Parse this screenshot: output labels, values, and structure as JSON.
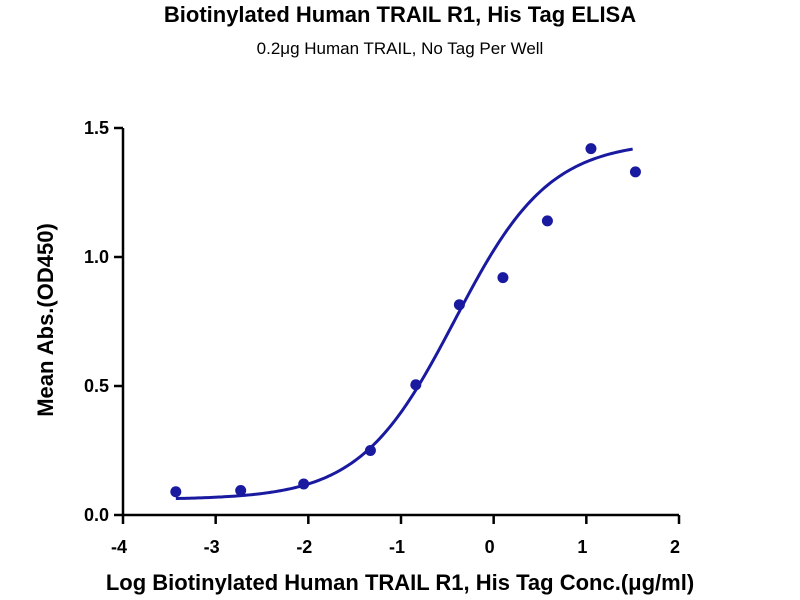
{
  "chart_data": {
    "type": "scatter",
    "title": "Biotinylated Human TRAIL R1, His Tag ELISA",
    "subtitle": "0.2μg Human TRAIL, No Tag Per Well",
    "xlabel": "Log Biotinylated Human TRAIL R1, His Tag Conc.(μg/ml)",
    "ylabel": "Mean Abs.(OD450)",
    "xlim": [
      -4,
      2
    ],
    "ylim": [
      0,
      1.5
    ],
    "xticks": [
      "-4",
      "-3",
      "-2",
      "-1",
      "0",
      "1",
      "2"
    ],
    "yticks": [
      "0.0",
      "0.5",
      "1.0",
      "1.5"
    ],
    "grid": false,
    "colors": {
      "series": "#1a1aa0",
      "axis": "#000000"
    },
    "series": [
      {
        "points": [
          {
            "x": -3.43,
            "y": 0.09
          },
          {
            "x": -2.73,
            "y": 0.095
          },
          {
            "x": -2.05,
            "y": 0.12
          },
          {
            "x": -1.33,
            "y": 0.25
          },
          {
            "x": -0.84,
            "y": 0.505
          },
          {
            "x": -0.37,
            "y": 0.815
          },
          {
            "x": 0.1,
            "y": 0.92
          },
          {
            "x": 0.58,
            "y": 1.14
          },
          {
            "x": 1.05,
            "y": 1.42
          },
          {
            "x": 1.53,
            "y": 1.33
          }
        ],
        "fit": {
          "type": "sigmoid",
          "bottom": 0.06,
          "top": 1.45,
          "log_ec50": -0.42,
          "hill_slope": 0.85,
          "x_range": [
            -3.43,
            1.5
          ]
        }
      }
    ]
  }
}
